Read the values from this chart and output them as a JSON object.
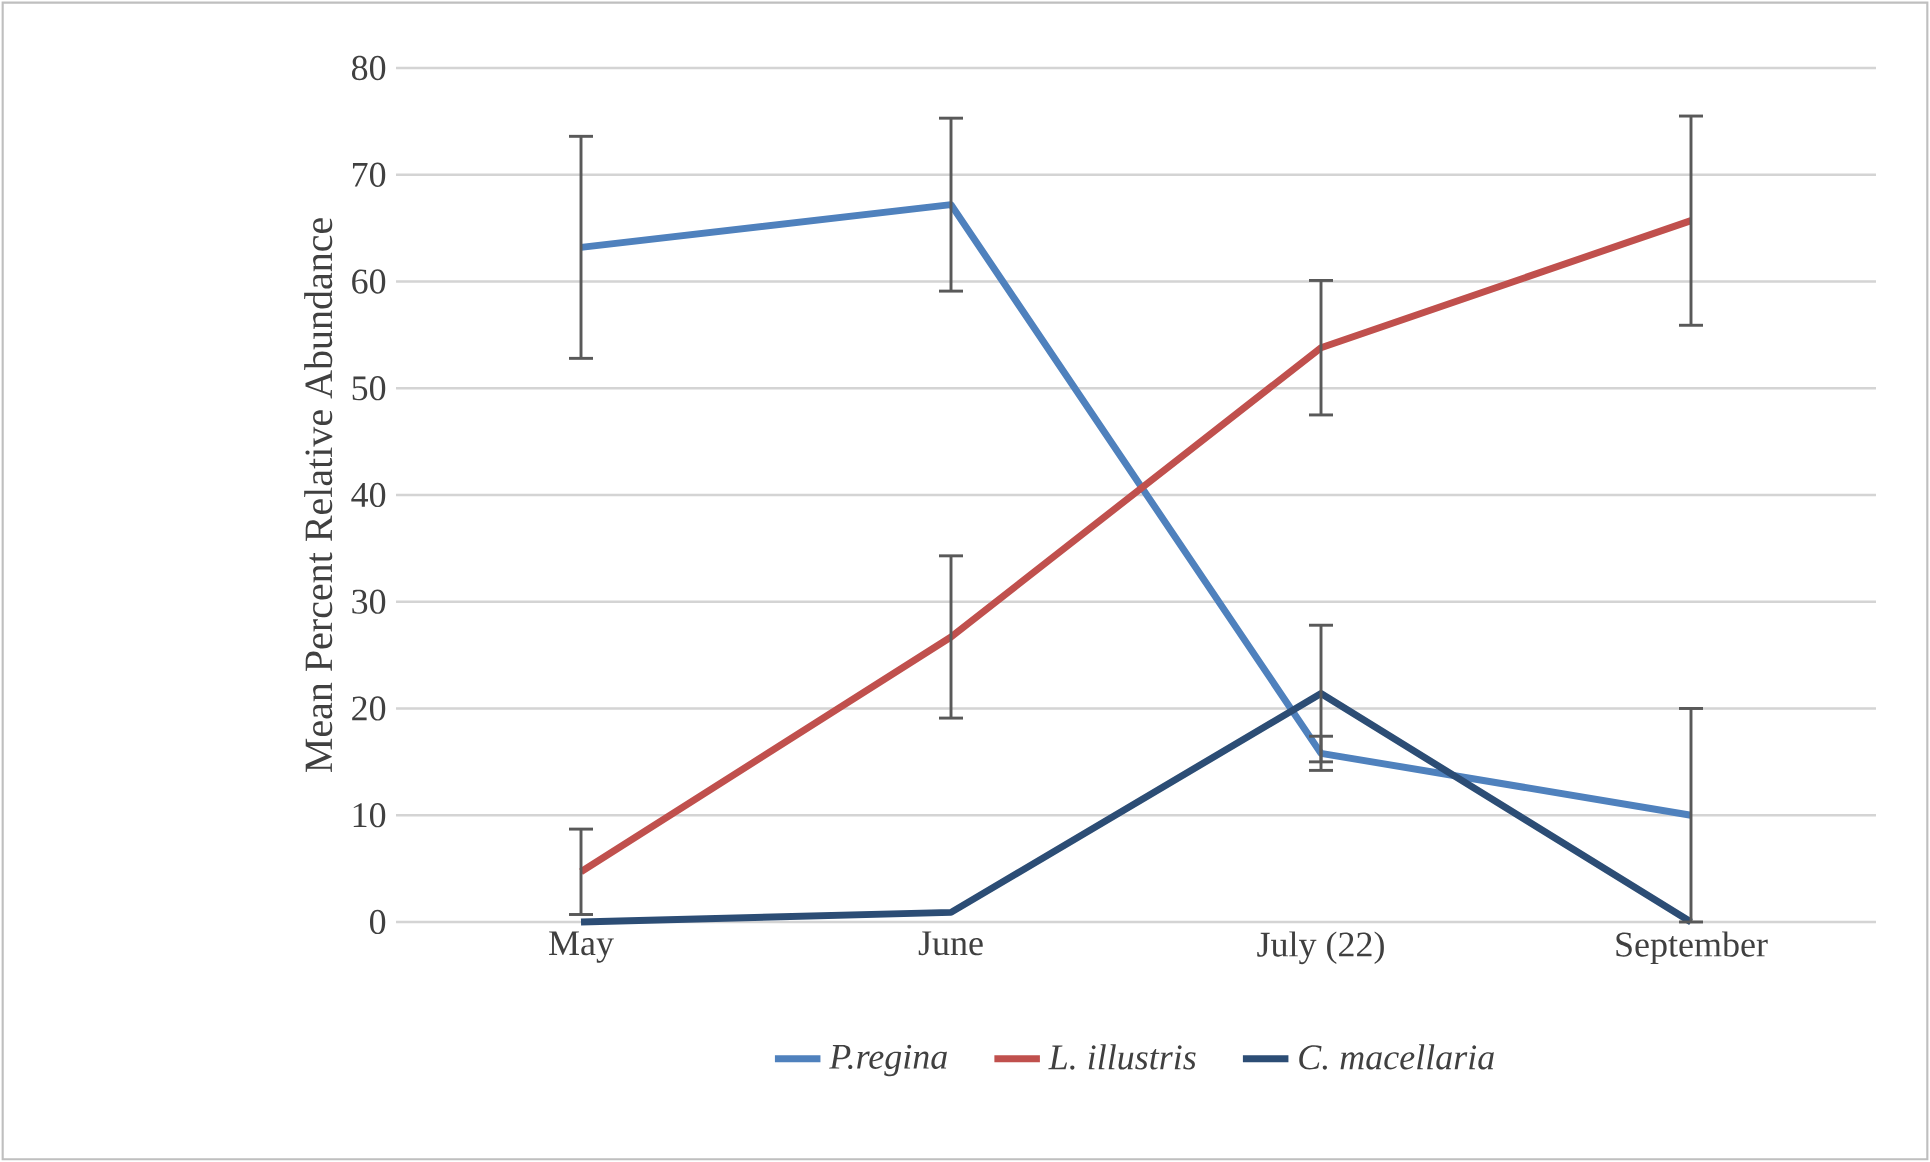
{
  "chart_data": {
    "type": "line",
    "ylabel": "Mean Percent Relative Abundance",
    "categories": [
      "May",
      "June",
      "July (22)",
      "September"
    ],
    "series": [
      {
        "name": "P.regina",
        "color": "#4f81bd",
        "values": [
          63.2,
          67.2,
          15.8,
          10.0
        ],
        "errors": [
          10.4,
          8.1,
          1.6,
          10.0
        ]
      },
      {
        "name": "L. illustris",
        "color": "#c0504d",
        "values": [
          4.7,
          26.7,
          53.8,
          65.7
        ],
        "errors": [
          4.0,
          7.6,
          6.3,
          9.8
        ]
      },
      {
        "name": "C. macellaria",
        "color": "#2c4d75",
        "values": [
          0,
          0.9,
          21.4,
          0
        ],
        "errors": [
          null,
          null,
          6.4,
          null
        ]
      }
    ],
    "ylim": [
      0,
      80
    ],
    "yticks": [
      0,
      10,
      20,
      30,
      40,
      50,
      60,
      70,
      80
    ],
    "grid": "y",
    "legend": "bottom",
    "marker": "none",
    "line_style": "solid"
  }
}
